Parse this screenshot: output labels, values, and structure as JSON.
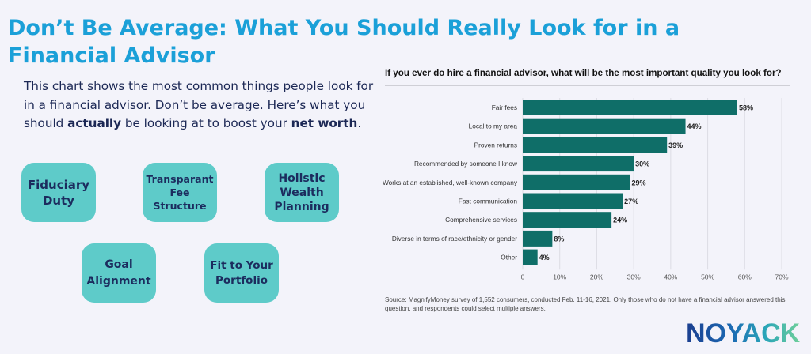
{
  "header": {
    "title": "Don’t Be Average: What You Should Really Look for in a Financial Advisor"
  },
  "intro": {
    "text_1": "This chart shows the most common things people look for in a financial advisor. Don’t be average. Here’s what you should ",
    "bold_1": "actually",
    "text_2": " be looking at to boost your ",
    "bold_2": "net worth",
    "text_3": "."
  },
  "pills": {
    "fiduciary": "Fiduciary Duty",
    "transparent_fee": "Transparant Fee Structure",
    "holistic": "Holistic Wealth Planning",
    "goal": "Goal Alignment",
    "fit": "Fit to Your Portfolio"
  },
  "colors": {
    "title": "#1ba0d8",
    "pill_bg": "#5ecbc9",
    "pill_text": "#1c2c5e",
    "bar": "#0f6e68"
  },
  "chart_data": {
    "type": "bar",
    "orientation": "horizontal",
    "title": "If you ever do hire a financial advisor, what will be the most important quality you look for?",
    "categories": [
      "Fair fees",
      "Local to my area",
      "Proven returns",
      "Recommended by someone I know",
      "Works at an established, well-known company",
      "Fast communication",
      "Comprehensive services",
      "Diverse in terms of race/ethnicity or gender",
      "Other"
    ],
    "values": [
      58,
      44,
      39,
      30,
      29,
      27,
      24,
      8,
      4
    ],
    "value_labels": [
      "58%",
      "44%",
      "39%",
      "30%",
      "29%",
      "27%",
      "24%",
      "8%",
      "4%"
    ],
    "xlim": [
      0,
      70
    ],
    "xticks": [
      0,
      10,
      20,
      30,
      40,
      50,
      60,
      70
    ],
    "xtick_labels": [
      "0",
      "10%",
      "20%",
      "30%",
      "40%",
      "50%",
      "60%",
      "70%"
    ],
    "grid": "vertical"
  },
  "footer": {
    "source": "Source: MagnifyMoney survey of 1,552 consumers, conducted Feb. 11-16, 2021. Only those who do not have a financial advisor answered this question, and respondents could select multiple answers.",
    "logo": "NOYACK"
  }
}
